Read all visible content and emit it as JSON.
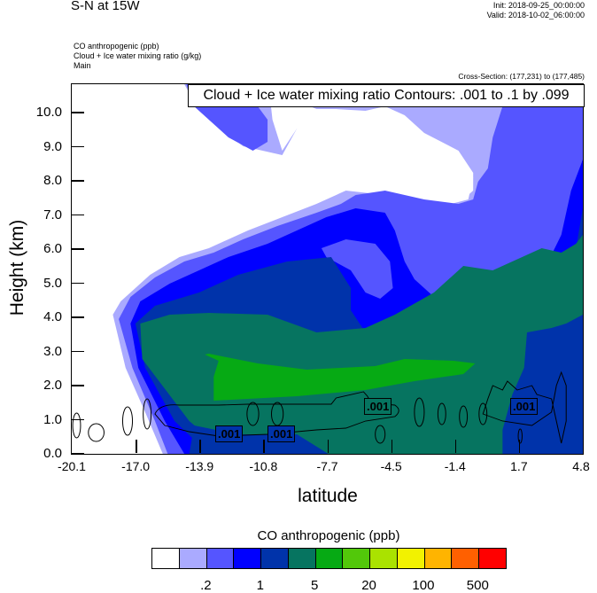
{
  "header": {
    "title": "S-N at 15W",
    "init": "Init: 2018-09-25_00:00:00",
    "valid": "Valid: 2018-10-02_06:00:00",
    "subtitles": [
      "CO anthropogenic   (ppb)",
      "Cloud + Ice water mixing ratio   (g/kg)",
      "Main"
    ],
    "cross_section": "Cross-Section: (177,231) to (177,485)"
  },
  "chart_data": {
    "type": "heatmap",
    "subtype": "filled contour cross-section with line contour overlay",
    "xlabel": "latitude",
    "ylabel": "Height (km)",
    "xlim": [
      -20.1,
      4.8
    ],
    "ylim": [
      0,
      10.8
    ],
    "x_ticks": [
      "-20.1",
      "-17.0",
      "-13.9",
      "-10.8",
      "-7.7",
      "-4.5",
      "-1.4",
      "1.7",
      "4.8"
    ],
    "y_ticks": [
      "0.0",
      "1.0",
      "2.0",
      "3.0",
      "4.0",
      "5.0",
      "6.0",
      "7.0",
      "8.0",
      "9.0",
      "10.0"
    ],
    "overlay_legend": "Cloud + Ice water mixing ratio Contours: .001 to .1 by .099",
    "contour_labels": [
      ".001",
      ".001",
      ".001",
      ".001"
    ],
    "colorbar": {
      "title": "CO anthropogenic  (ppb)",
      "colors": [
        "#ffffff",
        "#aaaaff",
        "#5555ff",
        "#0000ff",
        "#0033aa",
        "#067460",
        "#06aa14",
        "#52c80a",
        "#aae200",
        "#f2f200",
        "#ffb400",
        "#ff6000",
        "#ff0000"
      ],
      "tick_labels": [
        ".2",
        "1",
        "5",
        "20",
        "100",
        "500"
      ]
    }
  }
}
